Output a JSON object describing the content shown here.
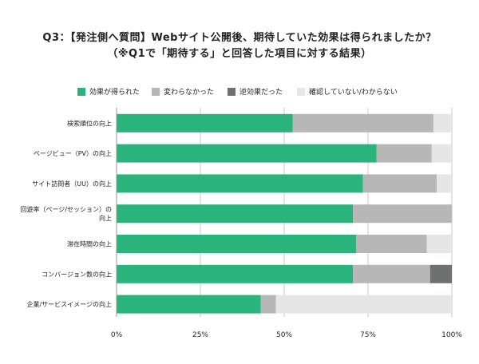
{
  "title_line1": "Q3：【発注側へ質問】Webサイト公開後、期待していた効果は得られましたか？",
  "title_line2": "（※Q1で「期待する」と回答した項目に対する結果）",
  "chart_data": {
    "type": "bar",
    "orientation": "horizontal",
    "stacked": true,
    "title": "Q3：【発注側へ質問】Webサイト公開後、期待していた効果は得られましたか？",
    "subtitle": "（※Q1で「期待する」と回答した項目に対する結果）",
    "categories": [
      "検索順位の向上",
      "ページビュー（PV）の向上",
      "サイト訪問者（UU）の向上",
      "回遊率（ページ/セッション）の向上",
      "滞在時間の向上",
      "コンバージョン数の向上",
      "企業/サービスイメージの向上"
    ],
    "series": [
      {
        "name": "効果が得られた",
        "color": "#2bb37c",
        "values": [
          52.5,
          77.5,
          73.5,
          70.5,
          71.5,
          70.5,
          43
        ]
      },
      {
        "name": "変わらなかった",
        "color": "#b7b7b7",
        "values": [
          42,
          16.5,
          22,
          29.5,
          21,
          23,
          4.5
        ]
      },
      {
        "name": "逆効果だった",
        "color": "#6e716f",
        "values": [
          0,
          0,
          0,
          0,
          0,
          6.5,
          0
        ]
      },
      {
        "name": "確認していない/わからない",
        "color": "#e6e6e6",
        "values": [
          5.5,
          6,
          4.5,
          0,
          7.5,
          0,
          52.5
        ]
      }
    ],
    "x_ticks": [
      "0%",
      "25%",
      "50%",
      "75%",
      "100%"
    ],
    "xlim": [
      0,
      100
    ],
    "grid": true,
    "legend_position": "top"
  }
}
